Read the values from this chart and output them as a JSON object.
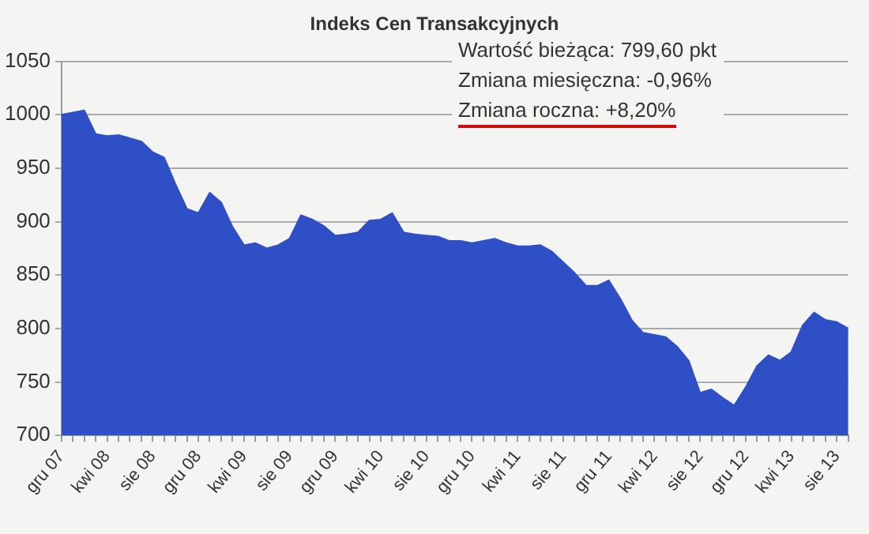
{
  "chart_data": {
    "type": "area",
    "title": "Indeks Cen Transakcyjnych",
    "categories": [
      "gru 07",
      null,
      null,
      null,
      "kwi 08",
      null,
      null,
      null,
      "sie 08",
      null,
      null,
      null,
      "gru 08",
      null,
      null,
      null,
      "kwi 09",
      null,
      null,
      null,
      "sie 09",
      null,
      null,
      null,
      "gru 09",
      null,
      null,
      null,
      "kwi 10",
      null,
      null,
      null,
      "sie 10",
      null,
      null,
      null,
      "gru 10",
      null,
      null,
      null,
      "kwi 11",
      null,
      null,
      null,
      "sie 11",
      null,
      null,
      null,
      "gru 11",
      null,
      null,
      null,
      "kwi 12",
      null,
      null,
      null,
      "sie 12",
      null,
      null,
      null,
      "gru 12",
      null,
      null,
      null,
      "kwi 13",
      null,
      null,
      null,
      "sie 13",
      null
    ],
    "series": [
      {
        "color": "#2f4fc6",
        "values": [
          1000,
          1002,
          1004,
          982,
          980,
          981,
          978,
          975,
          965,
          960,
          935,
          912,
          908,
          927,
          918,
          895,
          878,
          880,
          875,
          878,
          884,
          906,
          902,
          896,
          887,
          888,
          890,
          901,
          902,
          908,
          890,
          888,
          887,
          886,
          882,
          882,
          880,
          882,
          884,
          880,
          877,
          877,
          878,
          872,
          862,
          852,
          840,
          840,
          845,
          828,
          808,
          796,
          794,
          792,
          783,
          770,
          740,
          743,
          735,
          728,
          745,
          765,
          775,
          770,
          778,
          803,
          815,
          808,
          806,
          800
        ]
      }
    ],
    "ylim": [
      700,
      1050
    ],
    "yticks": [
      700,
      750,
      800,
      850,
      900,
      950,
      1000,
      1050
    ],
    "grid": "y",
    "legend": false,
    "annotations": [
      "Wartość bieżąca: 799,60 pkt",
      "Zmiana miesięczna: -0,96%",
      "Zmiana roczna: +8,20%"
    ]
  }
}
